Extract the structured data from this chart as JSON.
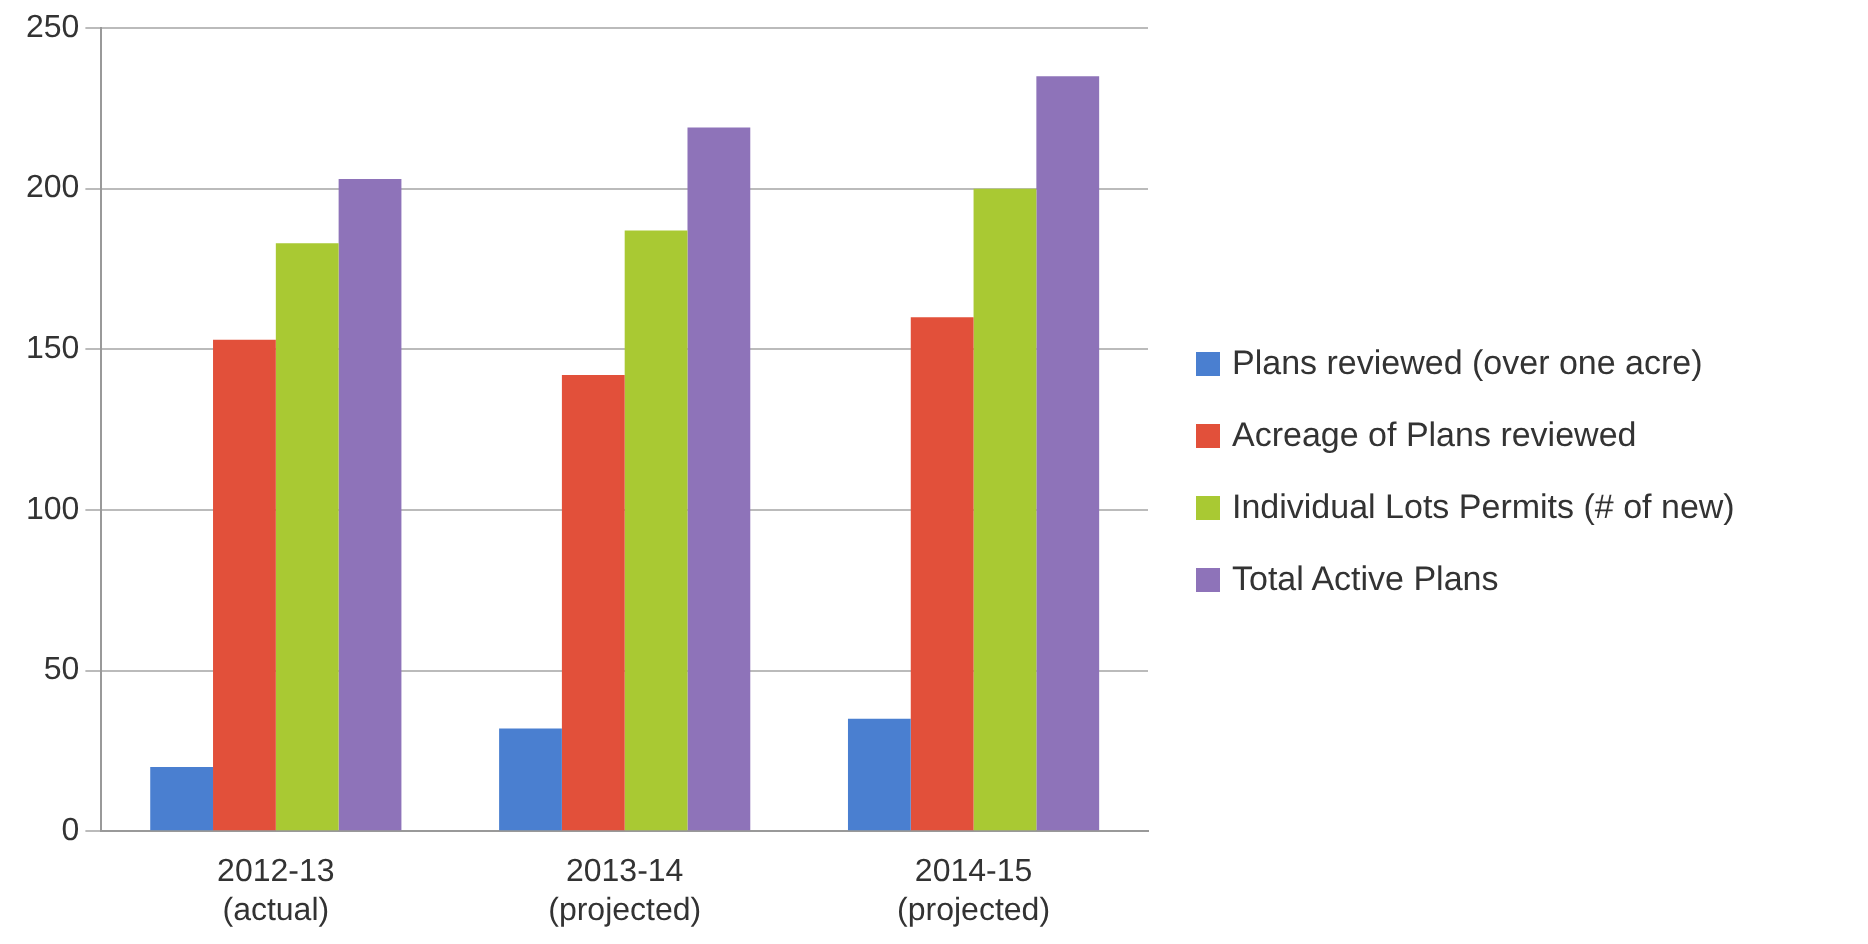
{
  "chart_data": {
    "type": "bar",
    "categories": [
      "2012-13 (actual)",
      "2013-14 (projected)",
      "2014-15 (projected)"
    ],
    "series": [
      {
        "name": "Plans reviewed (over one acre)",
        "color": "#4a7fd0",
        "values": [
          20,
          32,
          35
        ]
      },
      {
        "name": "Acreage of Plans reviewed",
        "color": "#e2503a",
        "values": [
          153,
          142,
          160
        ]
      },
      {
        "name": "Individual Lots Permits (# of new)",
        "color": "#a9c933",
        "values": [
          183,
          187,
          200
        ]
      },
      {
        "name": "Total Active Plans",
        "color": "#8e73b9",
        "values": [
          203,
          219,
          235
        ]
      }
    ],
    "ylim": [
      0,
      250
    ],
    "yticks": [
      0,
      50,
      100,
      150,
      200,
      250
    ],
    "grid": "y",
    "legend": "right"
  }
}
